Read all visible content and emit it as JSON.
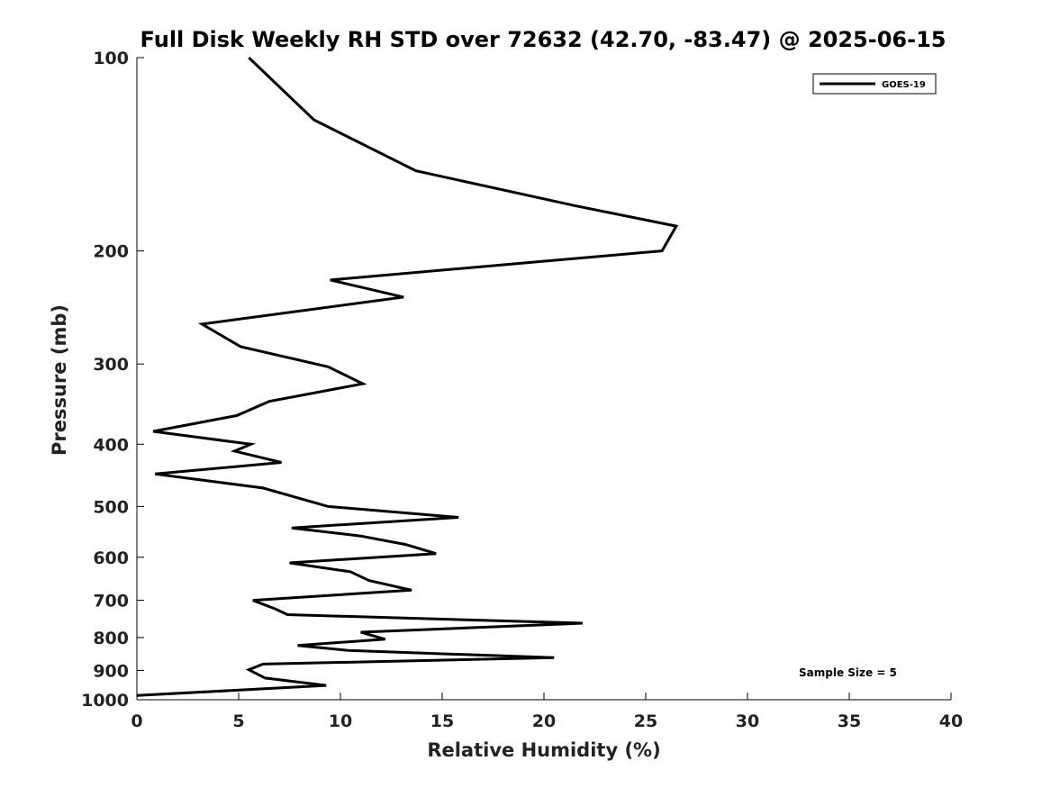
{
  "chart_data": {
    "type": "line",
    "title": "Full Disk Weekly RH STD over 72632 (42.70, -83.47) @ 2025-06-15",
    "xlabel": "Relative Humidity (%)",
    "ylabel": "Pressure (mb)",
    "xlim": [
      0,
      40
    ],
    "ylim": [
      1000,
      100
    ],
    "yscale": "log",
    "x_ticks": [
      0,
      5,
      10,
      15,
      20,
      25,
      30,
      35,
      40
    ],
    "x_tick_labels": [
      "0",
      "5",
      "10",
      "15",
      "20",
      "25",
      "30",
      "35",
      "40"
    ],
    "y_ticks": [
      100,
      200,
      300,
      400,
      500,
      600,
      700,
      800,
      900,
      1000
    ],
    "y_tick_labels": [
      "100",
      "200",
      "300",
      "400",
      "500",
      "600",
      "700",
      "800",
      "900",
      "1000"
    ],
    "grid": false,
    "legend_position": "top-right",
    "annotation": "Sample Size = 5",
    "series": [
      {
        "name": "GOES-19",
        "color": "#000000",
        "points": [
          [
            5.5,
            100
          ],
          [
            8.7,
            125
          ],
          [
            13.7,
            150
          ],
          [
            21.5,
            170
          ],
          [
            26.5,
            183
          ],
          [
            25.8,
            200
          ],
          [
            9.5,
            222
          ],
          [
            13.1,
            236
          ],
          [
            3.2,
            260
          ],
          [
            5.1,
            282
          ],
          [
            9.4,
            303
          ],
          [
            11.1,
            322
          ],
          [
            6.5,
            343
          ],
          [
            4.9,
            361
          ],
          [
            0.8,
            382
          ],
          [
            5.6,
            400
          ],
          [
            4.8,
            410
          ],
          [
            7.1,
            427
          ],
          [
            0.9,
            445
          ],
          [
            6.2,
            468
          ],
          [
            9.4,
            500
          ],
          [
            15.8,
            520
          ],
          [
            7.6,
            540
          ],
          [
            11.0,
            556
          ],
          [
            13.2,
            573
          ],
          [
            14.7,
            592
          ],
          [
            7.5,
            612
          ],
          [
            10.5,
            632
          ],
          [
            11.4,
            652
          ],
          [
            13.5,
            675
          ],
          [
            5.7,
            700
          ],
          [
            6.8,
            722
          ],
          [
            7.4,
            737
          ],
          [
            21.9,
            760
          ],
          [
            11.0,
            785
          ],
          [
            12.2,
            805
          ],
          [
            7.9,
            823
          ],
          [
            10.4,
            838
          ],
          [
            20.5,
            860
          ],
          [
            6.2,
            880
          ],
          [
            5.5,
            898
          ],
          [
            6.3,
            925
          ],
          [
            9.3,
            950
          ],
          [
            0.0,
            985
          ]
        ]
      }
    ]
  }
}
